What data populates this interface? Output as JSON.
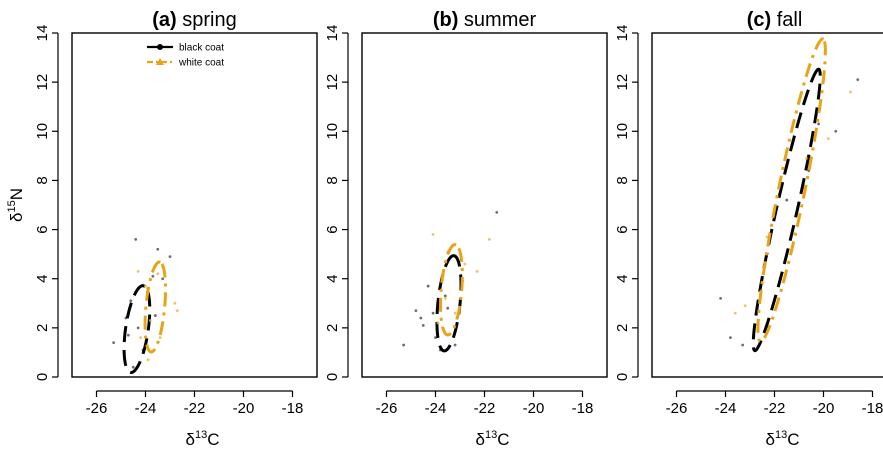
{
  "chart_data": [
    {
      "type": "scatter",
      "panel_tag": "(a)",
      "title": "spring",
      "xlabel": "δ13C",
      "ylabel": "δ15N",
      "xlim": [
        -27,
        -17
      ],
      "ylim": [
        0,
        14
      ],
      "xticks": [
        -26,
        -24,
        -22,
        -20,
        -18
      ],
      "yticks": [
        0,
        2,
        4,
        6,
        8,
        10,
        12,
        14
      ],
      "show_ylabel": true,
      "legend": {
        "position": "top-left",
        "entries": [
          {
            "label": "black coat",
            "color": "#000000",
            "marker": "circle",
            "dash": "solid"
          },
          {
            "label": "white coat",
            "color": "#E8A317",
            "marker": "triangle",
            "dash": "dashdot"
          }
        ]
      },
      "series": [
        {
          "name": "black coat",
          "color": "#000000",
          "dash": "long",
          "points": [
            [
              -25.3,
              1.4
            ],
            [
              -24.8,
              2.4
            ],
            [
              -24.5,
              0.4
            ],
            [
              -24.6,
              3.1
            ],
            [
              -24.3,
              2.0
            ],
            [
              -24.1,
              1.1
            ],
            [
              -23.9,
              3.6
            ],
            [
              -24.7,
              1.7
            ],
            [
              -23.6,
              2.5
            ],
            [
              -24.4,
              5.6
            ],
            [
              -23.5,
              5.2
            ],
            [
              -23.0,
              4.9
            ],
            [
              -23.7,
              4.1
            ],
            [
              -23.3,
              4.0
            ]
          ],
          "ellipse": {
            "center": [
              -24.35,
              1.95
            ],
            "a": 1.55,
            "b": 0.8,
            "angle": 67
          }
        },
        {
          "name": "white coat",
          "color": "#E8A317",
          "dash": "dashdot",
          "points": [
            [
              -24.2,
              1.6
            ],
            [
              -24.0,
              3.7
            ],
            [
              -23.8,
              2.3
            ],
            [
              -23.5,
              4.2
            ],
            [
              -23.2,
              3.4
            ],
            [
              -22.8,
              3.0
            ],
            [
              -23.9,
              0.7
            ],
            [
              -22.7,
              2.7
            ],
            [
              -24.3,
              4.3
            ],
            [
              -23.4,
              1.6
            ]
          ],
          "ellipse": {
            "center": [
              -23.6,
              2.85
            ],
            "a": 1.55,
            "b": 0.68,
            "angle": 76
          }
        }
      ]
    },
    {
      "type": "scatter",
      "panel_tag": "(b)",
      "title": "summer",
      "xlabel": "δ13C",
      "ylabel": "",
      "xlim": [
        -27,
        -17
      ],
      "ylim": [
        0,
        14
      ],
      "xticks": [
        -26,
        -24,
        -22,
        -20,
        -18
      ],
      "yticks": [
        0,
        2,
        4,
        6,
        8,
        10,
        12,
        14
      ],
      "show_ylabel": false,
      "series": [
        {
          "name": "black coat",
          "color": "#000000",
          "dash": "long",
          "points": [
            [
              -25.3,
              1.3
            ],
            [
              -24.8,
              2.7
            ],
            [
              -24.5,
              2.1
            ],
            [
              -24.3,
              3.7
            ],
            [
              -24.0,
              1.6
            ],
            [
              -23.8,
              1.1
            ],
            [
              -23.5,
              2.8
            ],
            [
              -23.2,
              1.3
            ],
            [
              -22.9,
              3.9
            ],
            [
              -23.6,
              3.3
            ],
            [
              -21.5,
              6.7
            ],
            [
              -24.1,
              2.6
            ],
            [
              -24.6,
              2.4
            ]
          ],
          "ellipse": {
            "center": [
              -23.45,
              3.0
            ],
            "a": 1.65,
            "b": 0.8,
            "angle": 74
          }
        },
        {
          "name": "white coat",
          "color": "#E8A317",
          "dash": "dashdot",
          "points": [
            [
              -24.1,
              5.8
            ],
            [
              -23.6,
              3.2
            ],
            [
              -23.2,
              2.6
            ],
            [
              -22.8,
              4.6
            ],
            [
              -21.8,
              5.6
            ],
            [
              -23.9,
              2.2
            ],
            [
              -22.3,
              4.3
            ],
            [
              -23.5,
              5.1
            ]
          ],
          "ellipse": {
            "center": [
              -23.35,
              3.55
            ],
            "a": 1.55,
            "b": 0.75,
            "angle": 77
          }
        }
      ]
    },
    {
      "type": "scatter",
      "panel_tag": "(c)",
      "title": "fall",
      "xlabel": "δ13C",
      "ylabel": "",
      "xlim": [
        -27,
        -17
      ],
      "ylim": [
        0,
        14
      ],
      "xticks": [
        -26,
        -24,
        -22,
        -20,
        -18
      ],
      "xtick_labels": [
        "-26",
        "-24",
        "-22",
        "-20",
        "-18"
      ],
      "yticks": [
        0,
        2,
        4,
        6,
        8,
        10,
        12,
        14
      ],
      "show_ylabel": false,
      "series": [
        {
          "name": "black coat",
          "color": "#000000",
          "dash": "long",
          "points": [
            [
              -24.2,
              3.2
            ],
            [
              -23.8,
              1.6
            ],
            [
              -23.3,
              1.3
            ],
            [
              -21.0,
              11.2
            ],
            [
              -20.6,
              8.4
            ],
            [
              -20.2,
              10.3
            ],
            [
              -18.6,
              12.1
            ],
            [
              -19.5,
              10.0
            ],
            [
              -21.5,
              7.2
            ]
          ],
          "ellipse": {
            "center": [
              -21.5,
              6.8
            ],
            "a": 5.3,
            "b": 0.7,
            "angle": 63
          }
        },
        {
          "name": "white coat",
          "color": "#E8A317",
          "dash": "dashdot",
          "points": [
            [
              -23.6,
              2.6
            ],
            [
              -23.2,
              2.9
            ],
            [
              -20.7,
              8.9
            ],
            [
              -19.8,
              9.7
            ],
            [
              -18.9,
              11.6
            ],
            [
              -22.3,
              5.7
            ]
          ],
          "ellipse": {
            "center": [
              -21.3,
              7.6
            ],
            "a": 5.6,
            "b": 0.9,
            "angle": 65
          }
        }
      ]
    }
  ]
}
